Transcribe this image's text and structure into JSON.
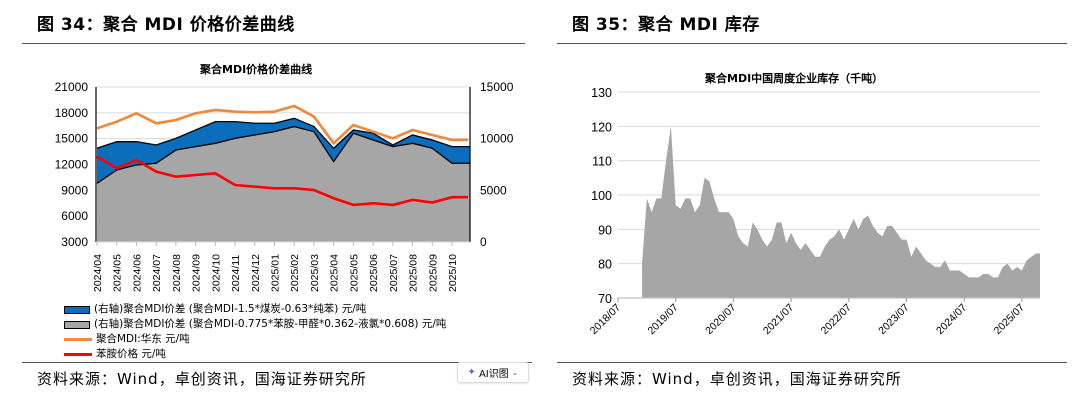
{
  "figures": {
    "left_title": "图 34：聚合 MDI 价格价差曲线",
    "right_title": "图 35：聚合 MDI 库存",
    "left_source": "资料来源：Wind，卓创资讯，国海证券研究所",
    "right_source": "资料来源：Wind，卓创资讯，国海证券研究所"
  },
  "ai_button": {
    "label": "AI识图",
    "icon": "sparkle-icon",
    "chevron": "chevron-down-icon"
  },
  "chart_data": [
    {
      "type": "line",
      "title": "聚合MDI价格价差曲线",
      "x": [
        "2024/04",
        "2024/05",
        "2024/06",
        "2024/07",
        "2024/08",
        "2024/09",
        "2024/10",
        "2024/11",
        "2024/12",
        "2025/01",
        "2025/02",
        "2025/03",
        "2025/04",
        "2025/05",
        "2025/06",
        "2025/07",
        "2025/08",
        "2025/09",
        "2025/10"
      ],
      "left_axis": {
        "ylim": [
          3000,
          21000
        ],
        "ticks": [
          "3000",
          "6000",
          "9000",
          "12000",
          "15000",
          "18000",
          "21000"
        ]
      },
      "right_axis": {
        "ylim": [
          0,
          15000
        ],
        "ticks": [
          "0",
          "5000",
          "10000",
          "15000"
        ]
      },
      "grid": true,
      "legend_position": "bottom",
      "series": [
        {
          "name": "(右轴)聚合MDI价差 (聚合MDI-1.5*煤炭-0.63*纯苯) 元/吨",
          "type": "area",
          "axis": "right",
          "color": "#0a6ebd",
          "values": [
            9070,
            9710,
            9710,
            9390,
            10030,
            10840,
            11650,
            11650,
            11490,
            11490,
            11970,
            11170,
            9070,
            10840,
            10520,
            9390,
            10360,
            9870,
            9230
          ]
        },
        {
          "name": "(右轴)聚合MDI价差 (聚合MDI-0.775*苯胺-甲醛*0.362-液氯*0.608) 元/吨",
          "type": "area",
          "axis": "right",
          "color": "#a6a6a6",
          "values": [
            5680,
            6970,
            7450,
            7620,
            8900,
            9230,
            9550,
            10030,
            10360,
            10680,
            11170,
            10680,
            7780,
            10520,
            9870,
            9230,
            9550,
            9070,
            7620
          ]
        },
        {
          "name": "聚合MDI:华东 元/吨",
          "type": "line",
          "axis": "left",
          "color": "#f0873a",
          "values": [
            16200,
            16970,
            17950,
            16780,
            17170,
            17950,
            18330,
            18140,
            18060,
            18140,
            18800,
            17560,
            14460,
            16590,
            15810,
            15040,
            16010,
            15430,
            14850
          ]
        },
        {
          "name": "苯胺价格 元/吨",
          "type": "line",
          "axis": "left",
          "color": "#ff0000",
          "values": [
            12910,
            11560,
            12520,
            11170,
            10590,
            10780,
            10970,
            9620,
            9430,
            9230,
            9230,
            9040,
            8080,
            7310,
            7500,
            7310,
            7890,
            7580,
            8200
          ]
        }
      ]
    },
    {
      "type": "area",
      "title": "聚合MDI中国周度企业库存（千吨）",
      "ylim": [
        70,
        130
      ],
      "yticks": [
        "70",
        "80",
        "90",
        "100",
        "110",
        "120",
        "130"
      ],
      "xticks": [
        "2018/07",
        "2019/07",
        "2020/07",
        "2021/07",
        "2022/07",
        "2023/07",
        "2024/07",
        "2025/07"
      ],
      "grid": true,
      "color": "#a6a6a6",
      "x": [
        "2018/12",
        "2019/01",
        "2019/02",
        "2019/03",
        "2019/04",
        "2019/05",
        "2019/06",
        "2019/07",
        "2019/08",
        "2019/09",
        "2019/10",
        "2019/11",
        "2019/12",
        "2020/01",
        "2020/02",
        "2020/03",
        "2020/04",
        "2020/05",
        "2020/06",
        "2020/07",
        "2020/08",
        "2020/09",
        "2020/10",
        "2020/11",
        "2020/12",
        "2021/01",
        "2021/02",
        "2021/03",
        "2021/04",
        "2021/05",
        "2021/06",
        "2021/07",
        "2021/08",
        "2021/09",
        "2021/10",
        "2021/11",
        "2021/12",
        "2022/01",
        "2022/02",
        "2022/03",
        "2022/04",
        "2022/05",
        "2022/06",
        "2022/07",
        "2022/08",
        "2022/09",
        "2022/10",
        "2022/11",
        "2022/12",
        "2023/01",
        "2023/02",
        "2023/03",
        "2023/04",
        "2023/05",
        "2023/06",
        "2023/07",
        "2023/08",
        "2023/09",
        "2023/10",
        "2023/11",
        "2023/12",
        "2024/01",
        "2024/02",
        "2024/03",
        "2024/04",
        "2024/05",
        "2024/06",
        "2024/07",
        "2024/08",
        "2024/09",
        "2024/10",
        "2024/11",
        "2024/12",
        "2025/01",
        "2025/02",
        "2025/03",
        "2025/04",
        "2025/05",
        "2025/06",
        "2025/07",
        "2025/08",
        "2025/09",
        "2025/10"
      ],
      "values": [
        80,
        99,
        95,
        99,
        99,
        110,
        120,
        97,
        96,
        99,
        99,
        95,
        97,
        105,
        104,
        99,
        95,
        95,
        95,
        93,
        88,
        86,
        85,
        92,
        90,
        87,
        85,
        87,
        92,
        92,
        86,
        89,
        86,
        84,
        86,
        84,
        82,
        82,
        85,
        87,
        88,
        90,
        87,
        90,
        93,
        90,
        93,
        94,
        91,
        89,
        88,
        91,
        91,
        89,
        87,
        87,
        82,
        85,
        83,
        81,
        80,
        79,
        79,
        81,
        78,
        78,
        78,
        77,
        76,
        76,
        76,
        77,
        77,
        76,
        76,
        79,
        80,
        78,
        79,
        78,
        81,
        82,
        83
      ]
    }
  ]
}
